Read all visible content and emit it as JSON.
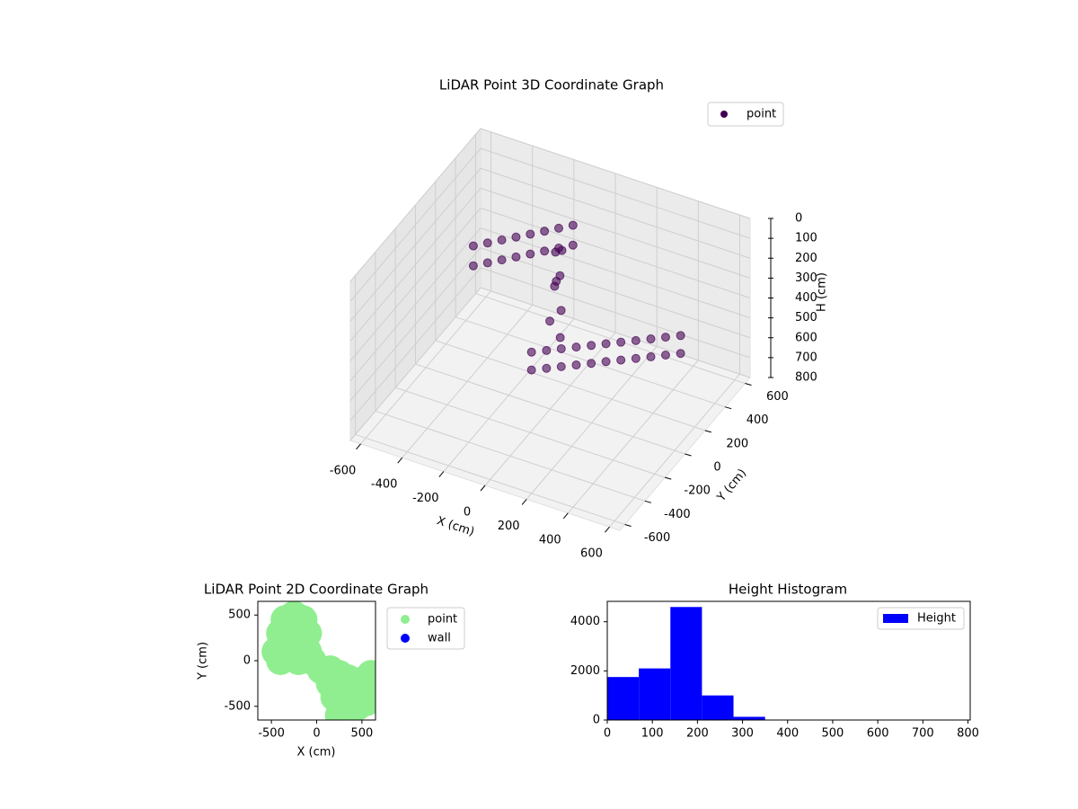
{
  "chart_data": [
    {
      "type": "scatter3d",
      "title": "LiDAR Point 3D Coordinate Graph",
      "x_label": "X (cm)",
      "y_label": "Y (cm)",
      "z_label": "H (cm)",
      "xlim": [
        -650,
        650
      ],
      "ylim": [
        -650,
        650
      ],
      "zlim": [
        800,
        0
      ],
      "xticks": [
        -600,
        -400,
        -200,
        0,
        200,
        400,
        600
      ],
      "yticks": [
        -600,
        -400,
        -200,
        0,
        200,
        400,
        600
      ],
      "zticks": [
        0,
        100,
        200,
        300,
        400,
        500,
        600,
        700,
        800
      ],
      "grid": true,
      "legend": "upper right",
      "series": [
        {
          "name": "point",
          "color": "#440154",
          "x": [
            -157,
            -106,
            -56,
            -5,
            46,
            96,
            147,
            198,
            249,
            299,
            350,
            -157,
            -106,
            -56,
            -5,
            46,
            96,
            147,
            198,
            249,
            299,
            350,
            -397,
            -353,
            -309,
            -265,
            -221,
            -177,
            -133,
            -89,
            -397,
            -353,
            -309,
            -265,
            -221,
            -177,
            -133,
            -89,
            -68,
            -40,
            -90,
            -20,
            -60,
            0,
            -100,
            -50
          ],
          "y": [
            138,
            182,
            226,
            270,
            314,
            358,
            401,
            445,
            489,
            533,
            577,
            138,
            182,
            226,
            270,
            314,
            358,
            401,
            445,
            489,
            533,
            577,
            54,
            105,
            156,
            207,
            258,
            309,
            360,
            411,
            54,
            105,
            156,
            207,
            258,
            309,
            360,
            411,
            201,
            180,
            230,
            150,
            120,
            100,
            260,
            220
          ],
          "z": [
            650,
            650,
            650,
            650,
            650,
            650,
            650,
            650,
            650,
            650,
            650,
            740,
            740,
            740,
            740,
            740,
            740,
            740,
            740,
            740,
            740,
            740,
            150,
            150,
            150,
            150,
            150,
            150,
            150,
            150,
            250,
            250,
            250,
            250,
            250,
            250,
            250,
            250,
            300,
            250,
            350,
            400,
            450,
            500,
            200,
            150
          ]
        }
      ]
    },
    {
      "type": "scatter",
      "title": "LiDAR Point 2D Coordinate Graph",
      "x_label": "X (cm)",
      "y_label": "Y (cm)",
      "xlim": [
        -650,
        650
      ],
      "ylim": [
        -650,
        650
      ],
      "xticks": [
        -500,
        0,
        500
      ],
      "yticks": [
        -500,
        0,
        500
      ],
      "legend": "outside upper right",
      "series": [
        {
          "name": "point",
          "color": "#90ee90",
          "x": [
            -450,
            -400,
            -350,
            -250,
            -150,
            -200,
            -300,
            -400,
            -200,
            -100,
            -100,
            -50,
            50,
            150,
            250,
            350,
            450,
            550,
            600,
            550,
            450,
            350,
            250,
            200,
            150,
            300,
            400,
            500
          ],
          "y": [
            100,
            300,
            450,
            500,
            450,
            250,
            150,
            0,
            0,
            100,
            300,
            0,
            -100,
            -100,
            -150,
            -200,
            -300,
            -200,
            -150,
            -450,
            -500,
            -550,
            -600,
            -400,
            -250,
            -350,
            -400,
            -350
          ]
        },
        {
          "name": "wall",
          "color": "#0000ff",
          "x": [],
          "y": []
        }
      ]
    },
    {
      "type": "histogram",
      "title": "Height Histogram",
      "bins": [
        0,
        70,
        140,
        210,
        280,
        350,
        420,
        490,
        560,
        630,
        700,
        770
      ],
      "xlim": [
        0,
        805
      ],
      "ylim": [
        0,
        4830
      ],
      "xticks": [
        0,
        100,
        200,
        300,
        400,
        500,
        600,
        700,
        800
      ],
      "yticks": [
        0,
        2000,
        4000
      ],
      "legend": "upper right",
      "series": [
        {
          "name": "Height",
          "color": "#0000ff",
          "values": [
            1750,
            2100,
            4600,
            1000,
            130,
            0,
            0,
            0,
            0,
            0,
            0
          ]
        }
      ]
    }
  ]
}
